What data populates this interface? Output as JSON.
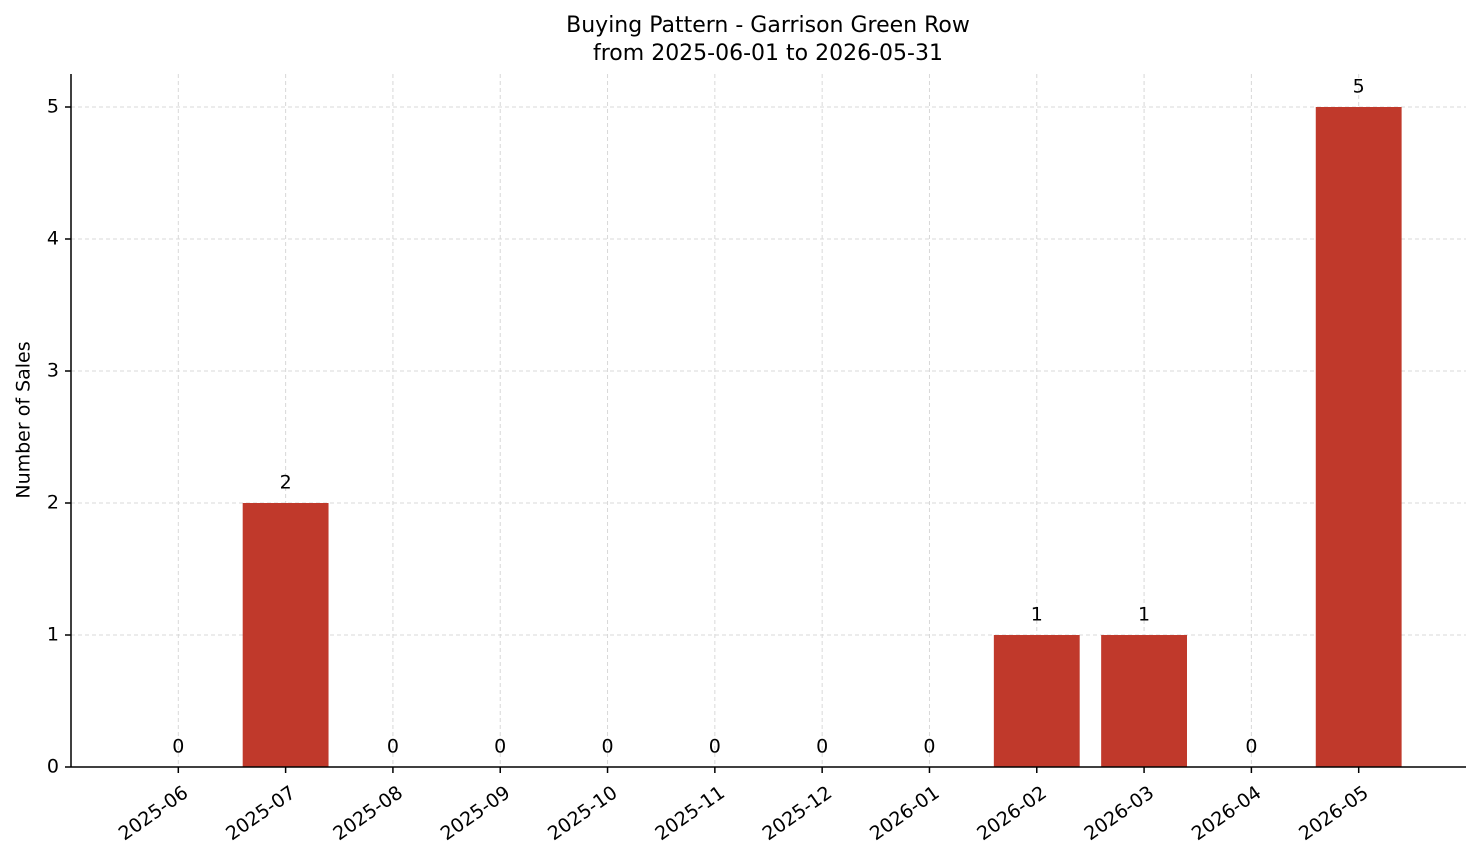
{
  "chart_data": {
    "type": "bar",
    "title": "Buying Pattern - Garrison Green Row",
    "subtitle": "from 2025-06-01 to 2026-05-31",
    "y_label": "Number of Sales",
    "categories": [
      "2025-06",
      "2025-07",
      "2025-08",
      "2025-09",
      "2025-10",
      "2025-11",
      "2025-12",
      "2026-01",
      "2026-02",
      "2026-03",
      "2026-04",
      "2026-05"
    ],
    "values": [
      0,
      2,
      0,
      0,
      0,
      0,
      0,
      0,
      1,
      1,
      0,
      5
    ],
    "color": "#c0392b",
    "ylim": [
      0,
      5.25
    ],
    "yticks": [
      0,
      1,
      2,
      3,
      4,
      5
    ],
    "grid": true
  }
}
